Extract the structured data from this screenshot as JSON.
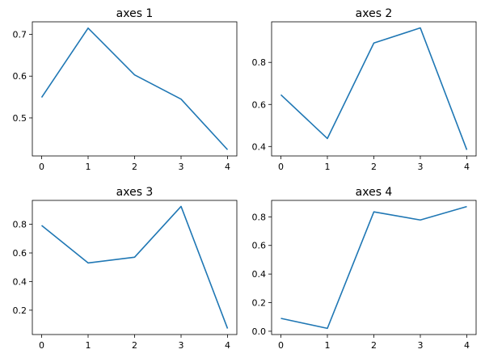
{
  "chart_data": [
    {
      "type": "line",
      "title": "axes 1",
      "x": [
        0,
        1,
        2,
        3,
        4
      ],
      "series": [
        {
          "values": [
            0.549,
            0.715,
            0.603,
            0.545,
            0.424
          ]
        }
      ],
      "xticks": [
        "0",
        "1",
        "2",
        "3",
        "4"
      ],
      "yticks": [
        "0.5",
        "0.6",
        "0.7"
      ],
      "xlim": [
        -0.2,
        4.2
      ],
      "ylim": [
        0.409,
        0.73
      ],
      "color": "#1f77b4",
      "grid": false
    },
    {
      "type": "line",
      "title": "axes 2",
      "x": [
        0,
        1,
        2,
        3,
        4
      ],
      "series": [
        {
          "values": [
            0.646,
            0.438,
            0.892,
            0.964,
            0.384
          ]
        }
      ],
      "xticks": [
        "0",
        "1",
        "2",
        "3",
        "4"
      ],
      "yticks": [
        "0.4",
        "0.6",
        "0.8"
      ],
      "xlim": [
        -0.2,
        4.2
      ],
      "ylim": [
        0.355,
        0.993
      ],
      "color": "#1f77b4",
      "grid": false
    },
    {
      "type": "line",
      "title": "axes 3",
      "x": [
        0,
        1,
        2,
        3,
        4
      ],
      "series": [
        {
          "values": [
            0.792,
            0.53,
            0.57,
            0.925,
            0.072
          ]
        }
      ],
      "xticks": [
        "0",
        "1",
        "2",
        "3",
        "4"
      ],
      "yticks": [
        "0.2",
        "0.4",
        "0.6",
        "0.8"
      ],
      "xlim": [
        -0.2,
        4.2
      ],
      "ylim": [
        0.03,
        0.967
      ],
      "color": "#1f77b4",
      "grid": false
    },
    {
      "type": "line",
      "title": "axes 4",
      "x": [
        0,
        1,
        2,
        3,
        4
      ],
      "series": [
        {
          "values": [
            0.09,
            0.02,
            0.835,
            0.778,
            0.872
          ]
        }
      ],
      "xticks": [
        "0",
        "1",
        "2",
        "3",
        "4"
      ],
      "yticks": [
        "0.0",
        "0.2",
        "0.4",
        "0.6",
        "0.8"
      ],
      "xlim": [
        -0.2,
        4.2
      ],
      "ylim": [
        -0.023,
        0.915
      ],
      "color": "#1f77b4",
      "grid": false
    }
  ]
}
